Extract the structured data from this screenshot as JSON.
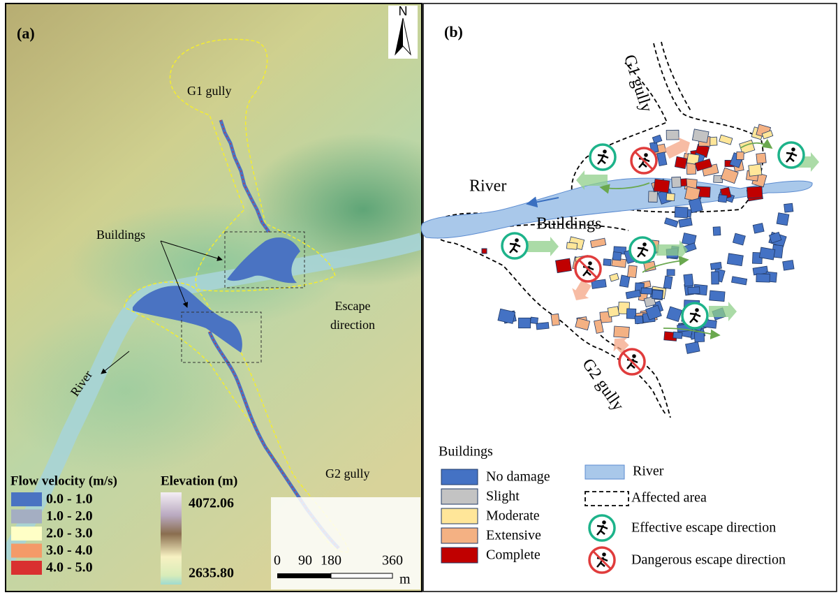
{
  "panel_a": {
    "label": "(a)",
    "north": "N",
    "g1_label": "G1 gully",
    "buildings_label": "Buildings",
    "escape_label": [
      "Escape",
      "direction"
    ],
    "river_label": "River",
    "g2_label": "G2 gully",
    "velocity_legend": {
      "title": "Flow velocity (m/s)",
      "items": [
        {
          "label": "0.0 - 1.0",
          "color": "#4a73c2"
        },
        {
          "label": "1.0 - 2.0",
          "color": "#a4aec2"
        },
        {
          "label": "2.0 - 3.0",
          "color": "#ffffc6"
        },
        {
          "label": "3.0 - 4.0",
          "color": "#f49a68"
        },
        {
          "label": "4.0 - 5.0",
          "color": "#d93030"
        }
      ]
    },
    "elevation_legend": {
      "title": "Elevation (m)",
      "max": "4072.06",
      "min": "2635.80"
    },
    "scale_bar": {
      "ticks": [
        "0",
        "90",
        "180",
        "360"
      ],
      "unit": "m"
    }
  },
  "panel_b": {
    "label": "(b)",
    "g1_label": "G1 gully",
    "river_label": "River",
    "buildings_label": "Buildings",
    "g2_label": "G2 gully",
    "legend": {
      "title": "Buildings",
      "damage": [
        {
          "label": "No damage",
          "color": "#4472c4"
        },
        {
          "label": "Slight",
          "color": "#c3c3c3"
        },
        {
          "label": "Moderate",
          "color": "#ffe699"
        },
        {
          "label": "Extensive",
          "color": "#f4b183"
        },
        {
          "label": "Complete",
          "color": "#c00000"
        }
      ],
      "river": "River",
      "affected": "Affected area",
      "effective": "Effective escape direction",
      "dangerous": "Dangerous escape direction"
    }
  }
}
